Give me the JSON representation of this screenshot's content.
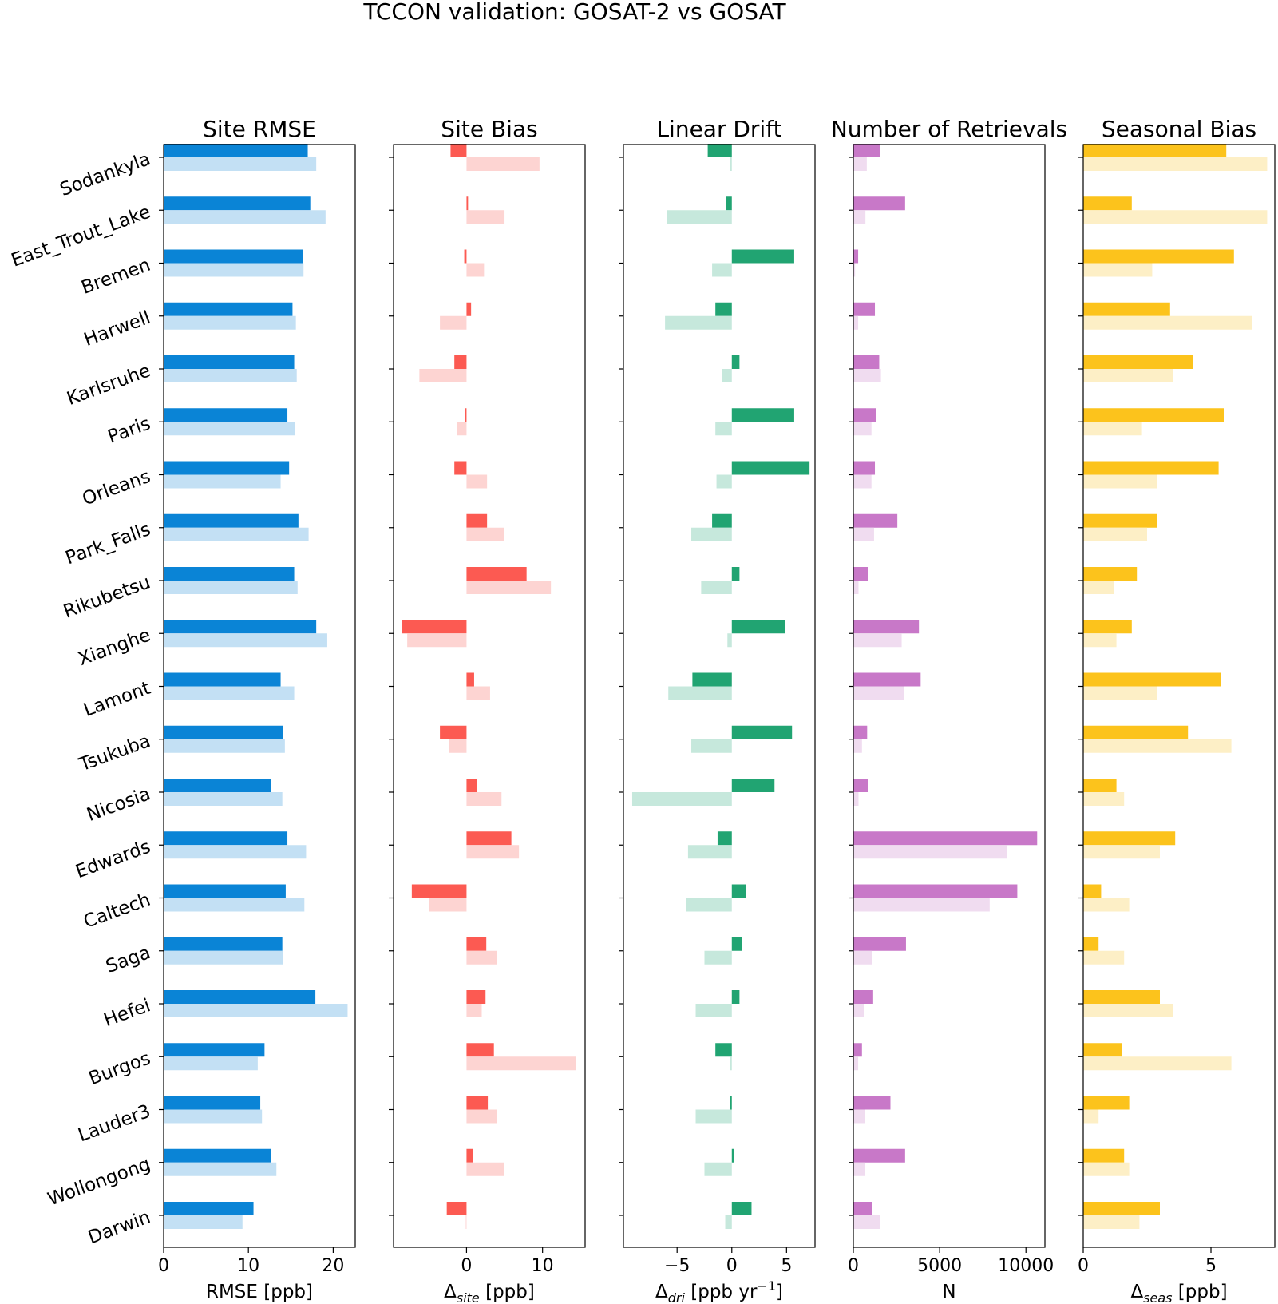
{
  "chart_data": {
    "title": "TCCON validation: GOSAT-2 vs GOSAT",
    "type": "bar",
    "orientation": "horizontal",
    "sites": [
      "Sodankyla",
      "East_Trout_Lake",
      "Bremen",
      "Harwell",
      "Karlsruhe",
      "Paris",
      "Orleans",
      "Park_Falls",
      "Rikubetsu",
      "Xianghe",
      "Lamont",
      "Tsukuba",
      "Nicosia",
      "Edwards",
      "Caltech",
      "Saga",
      "Hefei",
      "Burgos",
      "Lauder3",
      "Wollongong",
      "Darwin"
    ],
    "series_names": [
      "GOSAT-2",
      "GOSAT"
    ],
    "panels": [
      {
        "title": "Site RMSE",
        "xlabel": "RMSE [ppb]",
        "xlim": [
          0,
          22.6
        ],
        "ticks": [
          0,
          10,
          20
        ],
        "tick_labels": [
          "0",
          "10",
          "20"
        ],
        "colors": [
          "#0a84d6",
          "#c3e0f4"
        ],
        "gosat2": [
          17.0,
          17.3,
          16.4,
          15.2,
          15.4,
          14.6,
          14.8,
          15.9,
          15.4,
          18.0,
          13.8,
          14.1,
          12.7,
          14.6,
          14.4,
          14.0,
          17.9,
          11.9,
          11.4,
          12.7,
          10.6
        ],
        "gosat": [
          18.0,
          19.1,
          16.5,
          15.6,
          15.7,
          15.5,
          13.8,
          17.1,
          15.8,
          19.3,
          15.4,
          14.3,
          14.0,
          16.8,
          16.6,
          14.1,
          21.7,
          11.1,
          11.6,
          13.3,
          9.3
        ]
      },
      {
        "title": "Site Bias",
        "xlabel_main": "Δ",
        "xlabel_sub": "site",
        "xlabel_tail": " [ppb]",
        "xlim": [
          -9.6,
          15.6
        ],
        "ticks": [
          0,
          10
        ],
        "tick_labels": [
          "0",
          "10"
        ],
        "colors": [
          "#fc5a52",
          "#fdd4d2"
        ],
        "gosat2": [
          -2.1,
          0.2,
          -0.3,
          0.6,
          -1.6,
          -0.2,
          -1.6,
          2.7,
          7.9,
          -8.5,
          1.0,
          -3.5,
          1.4,
          5.9,
          -7.2,
          2.6,
          2.5,
          3.6,
          2.8,
          0.9,
          -2.6
        ],
        "gosat": [
          9.6,
          5.0,
          2.3,
          -3.5,
          -6.2,
          -1.2,
          2.7,
          4.9,
          11.1,
          -7.8,
          3.1,
          -2.3,
          4.6,
          6.9,
          -4.9,
          4.0,
          2.0,
          14.4,
          4.0,
          4.9,
          -0.1
        ]
      },
      {
        "title": "Linear Drift",
        "xlabel_main": "Δ",
        "xlabel_sub": "dri",
        "xlabel_tail": " [ppb yr",
        "xlabel_sup": "−1",
        "xlabel_end": "]",
        "xlim": [
          -9.9,
          7.6
        ],
        "ticks": [
          -5,
          0,
          5
        ],
        "tick_labels": [
          "−5",
          "0",
          "5"
        ],
        "colors": [
          "#21a472",
          "#c6e8dc"
        ],
        "gosat2": [
          -2.2,
          -0.5,
          5.7,
          -1.5,
          0.7,
          5.7,
          7.1,
          -1.8,
          0.7,
          4.9,
          -3.6,
          5.5,
          3.9,
          -1.3,
          1.3,
          0.9,
          0.7,
          -1.5,
          -0.2,
          0.2,
          1.8
        ],
        "gosat": [
          -0.2,
          -5.9,
          -1.8,
          -6.1,
          -0.9,
          -1.5,
          -1.4,
          -3.7,
          -2.8,
          -0.4,
          -5.8,
          -3.7,
          -9.1,
          -4.0,
          -4.2,
          -2.5,
          -3.3,
          -0.2,
          -3.3,
          -2.5,
          -0.6
        ]
      },
      {
        "title": "Number of Retrievals",
        "xlabel": "N",
        "xlim": [
          0,
          11100
        ],
        "ticks": [
          0,
          5000,
          10000
        ],
        "tick_labels": [
          "0",
          "5000",
          "10000"
        ],
        "colors": [
          "#c878c8",
          "#f0dcf0"
        ],
        "gosat2": [
          1550,
          3000,
          280,
          1250,
          1500,
          1300,
          1250,
          2550,
          850,
          3800,
          3900,
          800,
          850,
          10650,
          9500,
          3050,
          1150,
          500,
          2150,
          3000,
          1100
        ],
        "gosat": [
          780,
          700,
          100,
          280,
          1600,
          1050,
          1050,
          1200,
          300,
          2800,
          2950,
          500,
          300,
          8900,
          7900,
          1100,
          600,
          280,
          650,
          650,
          1550
        ]
      },
      {
        "title": "Seasonal Bias",
        "xlabel_main": "Δ",
        "xlabel_sub": "seas",
        "xlabel_tail": " [ppb]",
        "xlim": [
          0,
          7.5
        ],
        "ticks": [
          0,
          5
        ],
        "tick_labels": [
          "0",
          "5"
        ],
        "colors": [
          "#fcc31c",
          "#fdefc6"
        ],
        "gosat2": [
          5.6,
          1.9,
          5.9,
          3.4,
          4.3,
          5.5,
          5.3,
          2.9,
          2.1,
          1.9,
          5.4,
          4.1,
          1.3,
          3.6,
          0.7,
          0.6,
          3.0,
          1.5,
          1.8,
          1.6,
          3.0
        ],
        "gosat": [
          7.2,
          7.2,
          2.7,
          6.6,
          3.5,
          2.3,
          2.9,
          2.5,
          1.2,
          1.3,
          2.9,
          5.8,
          1.6,
          3.0,
          1.8,
          1.6,
          3.5,
          5.8,
          0.6,
          1.8,
          2.2
        ]
      }
    ]
  }
}
